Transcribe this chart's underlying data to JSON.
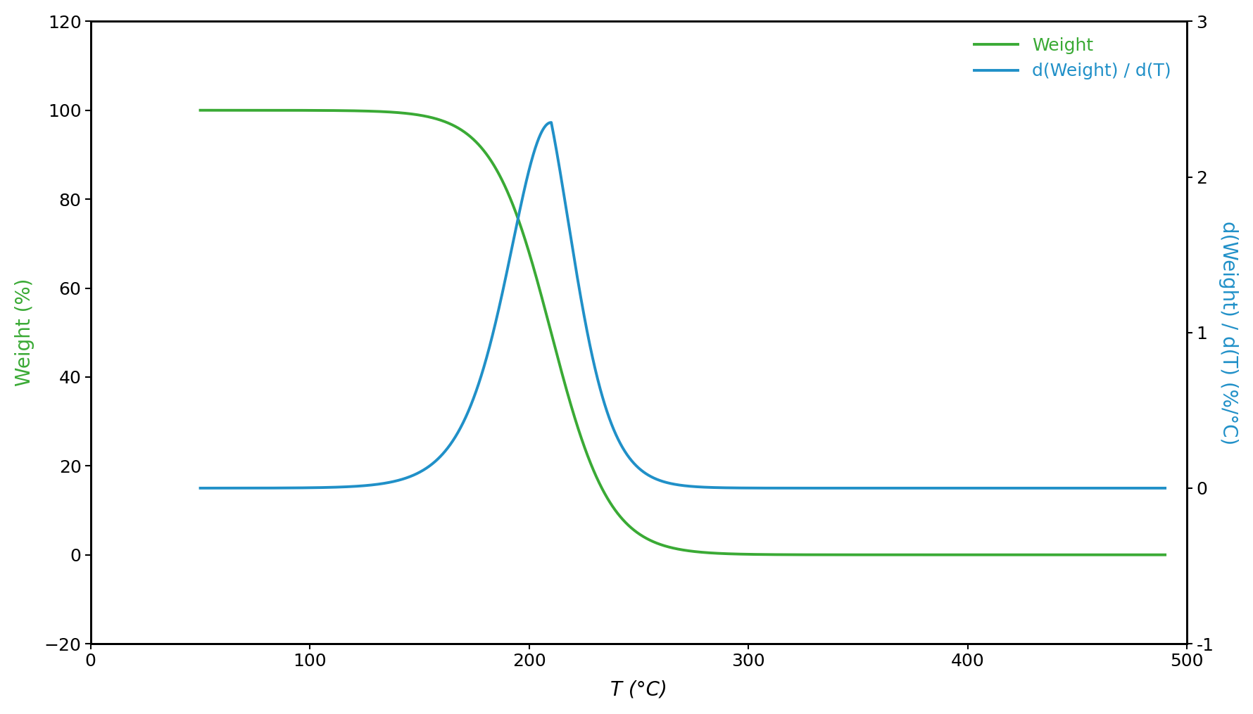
{
  "xlabel": "T (°C)",
  "ylabel_left": "Weight (%)",
  "ylabel_right": "d(Weight) / d(T) (%/°C)",
  "x_min": 0,
  "x_max": 500,
  "y_left_min": -20,
  "y_left_max": 120,
  "y_right_min": -1,
  "y_right_max": 3,
  "weight_color": "#3aaa35",
  "deriv_color": "#2090c8",
  "line_width": 2.8,
  "legend_labels": [
    "Weight",
    "d(Weight) / d(T)"
  ],
  "x_ticks": [
    0,
    100,
    200,
    300,
    400,
    500
  ],
  "y_left_ticks": [
    -20,
    0,
    20,
    40,
    60,
    80,
    100,
    120
  ],
  "y_right_ticks": [
    -1,
    0,
    1,
    2,
    3
  ],
  "tick_labelsize": 18,
  "axis_labelsize": 20,
  "legend_fontsize": 18
}
